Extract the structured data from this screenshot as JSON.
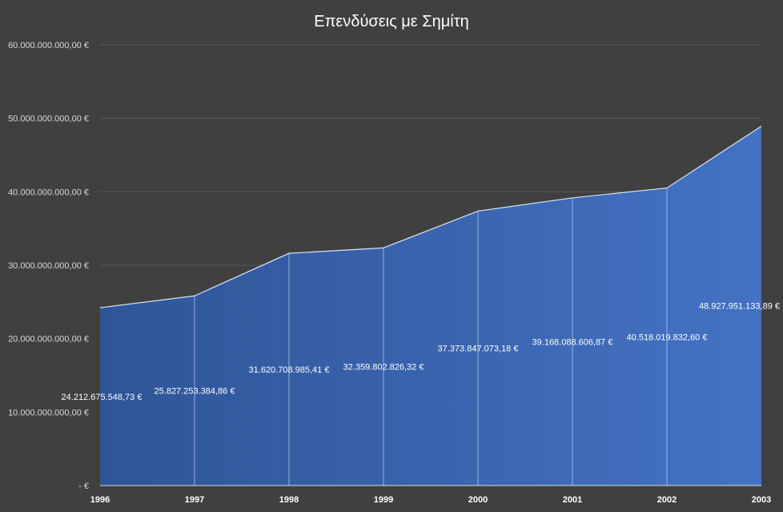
{
  "chart_data": {
    "type": "area",
    "title": "Επενδύσεις με Σημίτη",
    "xlabel": "",
    "ylabel": "",
    "categories": [
      "1996",
      "1997",
      "1998",
      "1999",
      "2000",
      "2001",
      "2002",
      "2003"
    ],
    "values": [
      24212675548.73,
      25827253384.86,
      31620708985.41,
      32359802826.32,
      37373847073.18,
      39168088606.87,
      40518019832.6,
      48927951133.89
    ],
    "data_labels": [
      "24.212.675.548,73 €",
      "25.827.253.384,86 €",
      "31.620.708.985,41 €",
      "32.359.802.826,32 €",
      "37.373.847.073,18 €",
      "39.168.088.606,87 €",
      "40.518.019.832,60 €",
      "48.927.951.133,89 €"
    ],
    "ylim": [
      0,
      60000000000
    ],
    "y_ticks": [
      0,
      10000000000,
      20000000000,
      30000000000,
      40000000000,
      50000000000,
      60000000000
    ],
    "y_tick_labels": [
      " -   €",
      "10.000.000.000,00 €",
      "20.000.000.000,00 €",
      "30.000.000.000,00 €",
      "40.000.000.000,00 €",
      "50.000.000.000,00 €",
      "60.000.000.000,00 €"
    ],
    "grid": true,
    "legend": "none",
    "colors": {
      "background": "#404040",
      "fill_start": "#2f5597",
      "fill_end": "#4472c4",
      "outline": "#d9e2f3",
      "gridline": "#595959"
    }
  }
}
